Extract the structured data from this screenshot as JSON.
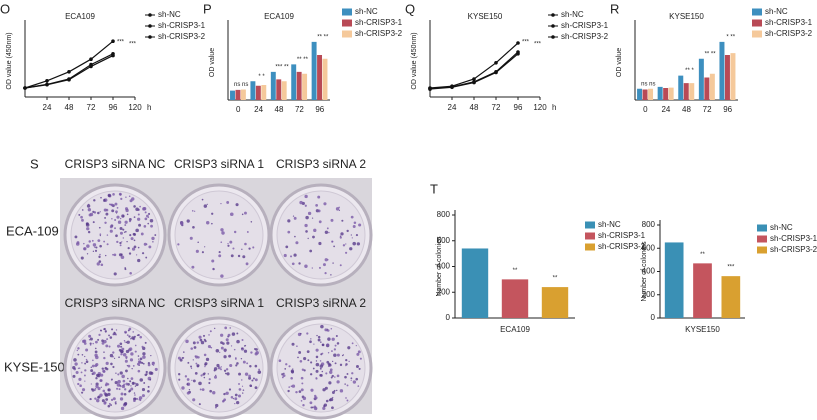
{
  "chart_data": [
    {
      "panel": "O",
      "type": "line",
      "title": "ECA109",
      "y_label": "OD value (450nm)",
      "x_unit": "h",
      "x": [
        0,
        24,
        48,
        72,
        96
      ],
      "xlim": [
        0,
        120
      ],
      "xticks": [
        24,
        48,
        72,
        96,
        120
      ],
      "ylim": [
        0,
        2
      ],
      "series": [
        {
          "name": "sh-NC",
          "color": "#111111",
          "values": [
            0.25,
            0.45,
            0.7,
            1.05,
            1.55
          ]
        },
        {
          "name": "sh-CRISP3-1",
          "color": "#111111",
          "values": [
            0.25,
            0.35,
            0.5,
            0.9,
            1.2
          ]
        },
        {
          "name": "sh-CRISP3-2",
          "color": "#111111",
          "values": [
            0.25,
            0.34,
            0.48,
            0.85,
            1.15
          ]
        }
      ],
      "annotations": [
        "***",
        "***"
      ]
    },
    {
      "panel": "P",
      "type": "bar",
      "title": "ECA109",
      "y_label": "OD value",
      "categories": [
        "0",
        "24",
        "48",
        "72",
        "96"
      ],
      "ylim": [
        0,
        2
      ],
      "series": [
        {
          "name": "sh-NC",
          "color": "#3d8fbf",
          "values": [
            0.25,
            0.5,
            0.75,
            0.95,
            1.55
          ]
        },
        {
          "name": "sh-CRISP3-1",
          "color": "#b94a56",
          "values": [
            0.27,
            0.38,
            0.55,
            0.75,
            1.2
          ]
        },
        {
          "name": "sh-CRISP3-2",
          "color": "#f5c99b",
          "values": [
            0.28,
            0.4,
            0.5,
            0.7,
            1.1
          ]
        }
      ],
      "annotations": [
        "ns ns",
        "* *",
        "*** **",
        "** **",
        "** **"
      ]
    },
    {
      "panel": "Q",
      "type": "line",
      "title": "KYSE150",
      "y_label": "OD value (450nm)",
      "x_unit": "h",
      "x": [
        0,
        24,
        48,
        72,
        96
      ],
      "xlim": [
        0,
        120
      ],
      "xticks": [
        24,
        48,
        72,
        96,
        120
      ],
      "ylim": [
        0,
        2
      ],
      "series": [
        {
          "name": "sh-NC",
          "color": "#111111",
          "values": [
            0.25,
            0.3,
            0.5,
            0.95,
            1.5
          ]
        },
        {
          "name": "sh-CRISP3-1",
          "color": "#111111",
          "values": [
            0.24,
            0.28,
            0.42,
            0.7,
            1.25
          ]
        },
        {
          "name": "sh-CRISP3-2",
          "color": "#111111",
          "values": [
            0.22,
            0.27,
            0.4,
            0.68,
            1.2
          ]
        }
      ],
      "annotations": [
        "***",
        "***"
      ]
    },
    {
      "panel": "R",
      "type": "bar",
      "title": "KYSE150",
      "y_label": "OD value",
      "categories": [
        "0",
        "24",
        "48",
        "72",
        "96"
      ],
      "ylim": [
        0,
        2
      ],
      "series": [
        {
          "name": "sh-NC",
          "color": "#3d8fbf",
          "values": [
            0.3,
            0.35,
            0.65,
            1.1,
            1.55
          ]
        },
        {
          "name": "sh-CRISP3-1",
          "color": "#b94a56",
          "values": [
            0.28,
            0.32,
            0.45,
            0.6,
            1.2
          ]
        },
        {
          "name": "sh-CRISP3-2",
          "color": "#f5c99b",
          "values": [
            0.3,
            0.33,
            0.45,
            0.7,
            1.25
          ]
        }
      ],
      "annotations": [
        "ns ns",
        "",
        "** *",
        "** **",
        "* **"
      ]
    },
    {
      "panel": "T",
      "type": "colony-bar",
      "x_label": "ECA109",
      "y_label": "Number of colonies",
      "ylim": [
        0,
        800
      ],
      "yticks": [
        0,
        200,
        400,
        600,
        800
      ],
      "series": [
        {
          "name": "sh-NC",
          "color": "#3a90b5",
          "values": [
            540
          ]
        },
        {
          "name": "sh-CRISP3-1",
          "color": "#c4555e",
          "values": [
            300
          ],
          "annotation": "**"
        },
        {
          "name": "sh-CRISP3-2",
          "color": "#d9a030",
          "values": [
            240
          ],
          "annotation": "**"
        }
      ]
    },
    {
      "type": "colony-bar",
      "x_label": "KYSE150",
      "y_label": "Number of colonies",
      "ylim": [
        0,
        800
      ],
      "yticks": [
        0,
        200,
        400,
        600,
        800
      ],
      "series": [
        {
          "name": "sh-NC",
          "color": "#3a90b5",
          "values": [
            650
          ]
        },
        {
          "name": "sh-CRISP3-1",
          "color": "#c4555e",
          "values": [
            470
          ],
          "annotation": "**"
        },
        {
          "name": "sh-CRISP3-2",
          "color": "#d9a030",
          "values": [
            360
          ],
          "annotation": "***"
        }
      ]
    }
  ],
  "colony_panel": {
    "panel": "S",
    "column_headers": [
      "CRISP3 siRNA NC",
      "CRISP3 siRNA 1",
      "CRISP3 siRNA 2"
    ],
    "rows": [
      "ECA-109",
      "KYSE-150"
    ]
  }
}
